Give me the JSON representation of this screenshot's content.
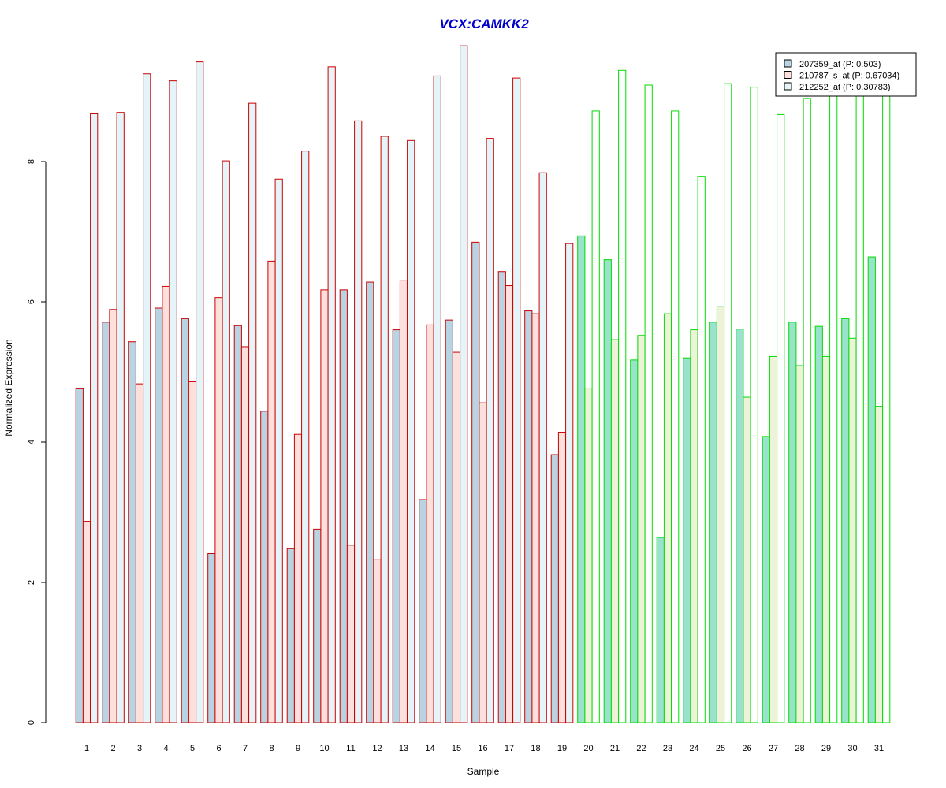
{
  "chart_data": {
    "type": "bar",
    "title": "VCX:CAMKK2",
    "xlabel": "Sample",
    "ylabel": "Normalized Expression",
    "categories": [
      "1",
      "2",
      "3",
      "4",
      "5",
      "6",
      "7",
      "8",
      "9",
      "10",
      "11",
      "12",
      "13",
      "14",
      "15",
      "16",
      "17",
      "18",
      "19",
      "20",
      "21",
      "22",
      "23",
      "24",
      "25",
      "26",
      "27",
      "28",
      "29",
      "30",
      "31"
    ],
    "ylim": [
      0,
      9.6
    ],
    "yticks": [
      0,
      2,
      4,
      6,
      8
    ],
    "ytick_labels": [
      "0",
      "2",
      "4",
      "6",
      "8"
    ],
    "grid": false,
    "legend_position": "top-right",
    "group_split_after": 19,
    "group_colors": {
      "group1_border": "#cc0000",
      "group2_border": "#00dd00"
    },
    "series": [
      {
        "name": "207359_at (P: 0.503)",
        "fill": "#b8d4e2",
        "group2_fill": "#99e2cc",
        "values": [
          4.76,
          5.71,
          5.43,
          5.91,
          5.76,
          2.41,
          5.66,
          4.44,
          2.48,
          2.76,
          6.17,
          6.28,
          5.6,
          3.18,
          5.74,
          6.85,
          6.43,
          5.87,
          3.82,
          6.94,
          6.6,
          5.17,
          2.64,
          5.2,
          5.71,
          5.61,
          4.08,
          5.71,
          5.65,
          5.76,
          6.64
        ]
      },
      {
        "name": "210787_s_at (P: 0.67034)",
        "fill": "#fde0dc",
        "group2_fill": "#eef2d8",
        "values": [
          2.87,
          5.89,
          4.83,
          6.22,
          4.86,
          6.06,
          5.36,
          6.58,
          4.11,
          6.17,
          2.53,
          2.33,
          6.3,
          5.67,
          5.28,
          4.56,
          6.23,
          5.83,
          4.14,
          4.77,
          5.46,
          5.52,
          5.83,
          5.6,
          5.93,
          4.64,
          5.22,
          5.09,
          5.22,
          5.48,
          4.51
        ]
      },
      {
        "name": "212252_at (P: 0.30783)",
        "fill": "#e4f4f8",
        "group2_fill": "#ffffff",
        "values": [
          8.68,
          8.7,
          9.25,
          9.15,
          9.42,
          8.01,
          8.83,
          7.75,
          8.15,
          9.35,
          8.58,
          8.36,
          8.3,
          9.22,
          9.65,
          8.33,
          9.19,
          7.84,
          6.83,
          8.72,
          9.3,
          9.09,
          8.72,
          7.79,
          9.11,
          9.06,
          8.67,
          8.9,
          8.95,
          8.95,
          9.0
        ]
      }
    ]
  }
}
